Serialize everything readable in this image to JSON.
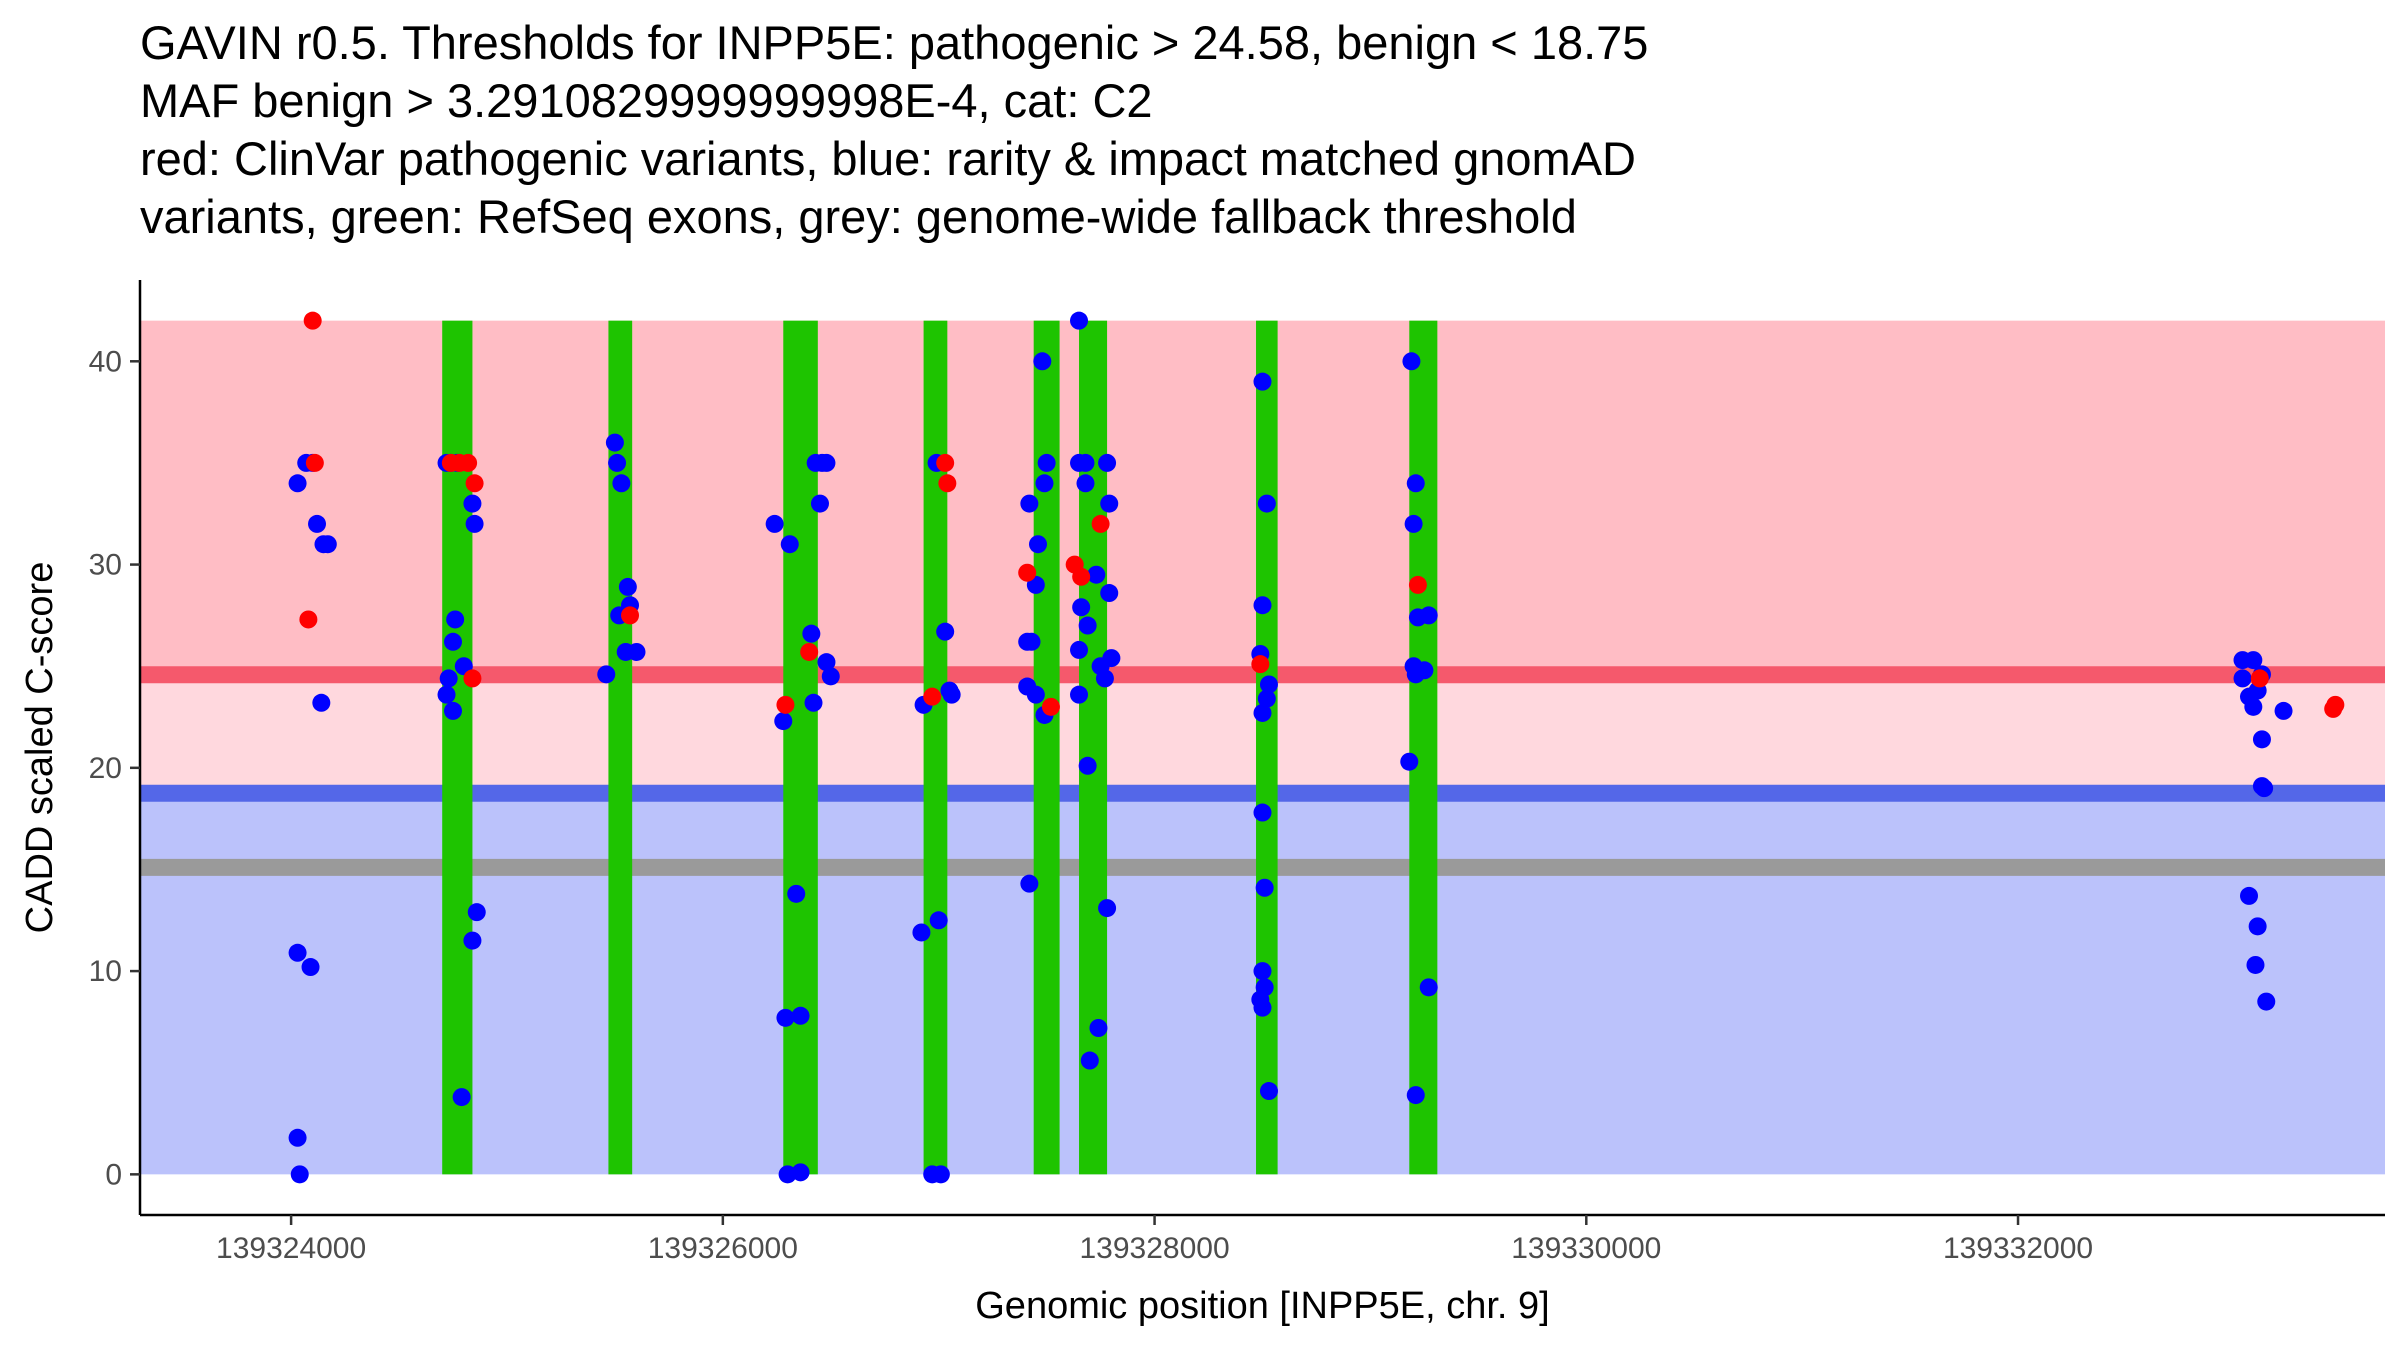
{
  "chart_data": {
    "type": "scatter",
    "title_lines": [
      "GAVIN r0.5. Thresholds for INPP5E: pathogenic > 24.58, benign < 18.75",
      "MAF benign > 3.2910829999999998E-4, cat: C2",
      "red: ClinVar pathogenic variants, blue: rarity & impact matched gnomAD",
      "variants, green: RefSeq exons, grey: genome-wide fallback threshold"
    ],
    "xlabel": "Genomic position [INPP5E, chr. 9]",
    "ylabel": "CADD scaled C-score",
    "xlim": [
      139323300,
      139333700
    ],
    "ylim": [
      -2,
      44
    ],
    "x_ticks": [
      139324000,
      139326000,
      139328000,
      139330000,
      139332000
    ],
    "x_tick_labels": [
      "139324000",
      "139326000",
      "139328000",
      "139330000",
      "139332000"
    ],
    "y_ticks": [
      0,
      10,
      20,
      30,
      40
    ],
    "y_tick_labels": [
      "0",
      "10",
      "20",
      "30",
      "40"
    ],
    "grid": false,
    "regions": {
      "x_range": [
        139323300,
        139333700
      ],
      "benign_band": {
        "from": 0,
        "to": 18.75,
        "color": "#bbc2fb"
      },
      "intermediate_band": {
        "from": 18.75,
        "to": 24.58,
        "color": "#ffd8de"
      },
      "pathogenic_band": {
        "from": 24.58,
        "to": 42,
        "color": "#ffbdc5"
      }
    },
    "threshold_lines": [
      {
        "name": "pathogenic",
        "value": 24.58,
        "color": "#f5596c"
      },
      {
        "name": "benign",
        "value": 18.75,
        "color": "#5467e8"
      },
      {
        "name": "fallback",
        "value": 15.1,
        "color": "#9a9a9a"
      }
    ],
    "exons": {
      "color": "#1ec400",
      "y_range": [
        0,
        42
      ],
      "ranges": [
        [
          139324700,
          139324840
        ],
        [
          139325470,
          139325580
        ],
        [
          139326280,
          139326440
        ],
        [
          139326930,
          139327040
        ],
        [
          139327440,
          139327560
        ],
        [
          139327650,
          139327780
        ],
        [
          139328470,
          139328570
        ],
        [
          139329180,
          139329310
        ]
      ]
    },
    "series": [
      {
        "name": "rarity & impact matched gnomAD variants",
        "color": "#0000ff",
        "points": [
          [
            139324030,
            34.0
          ],
          [
            139324070,
            35.0
          ],
          [
            139324100,
            35.0
          ],
          [
            139324120,
            32.0
          ],
          [
            139324150,
            31.0
          ],
          [
            139324170,
            31.0
          ],
          [
            139324140,
            23.2
          ],
          [
            139324030,
            10.9
          ],
          [
            139324090,
            10.2
          ],
          [
            139324030,
            1.8
          ],
          [
            139324040,
            0.0
          ],
          [
            139324720,
            35.0
          ],
          [
            139324740,
            35.0
          ],
          [
            139324770,
            35.0
          ],
          [
            139324760,
            27.3
          ],
          [
            139324750,
            26.2
          ],
          [
            139324730,
            24.4
          ],
          [
            139324720,
            23.6
          ],
          [
            139324750,
            22.8
          ],
          [
            139324800,
            25.0
          ],
          [
            139324840,
            33.0
          ],
          [
            139324850,
            32.0
          ],
          [
            139324860,
            12.9
          ],
          [
            139324840,
            11.5
          ],
          [
            139324790,
            3.8
          ],
          [
            139325500,
            36.0
          ],
          [
            139325510,
            35.0
          ],
          [
            139325530,
            34.0
          ],
          [
            139325560,
            28.9
          ],
          [
            139325570,
            28.0
          ],
          [
            139325520,
            27.5
          ],
          [
            139325460,
            24.6
          ],
          [
            139325550,
            25.7
          ],
          [
            139325600,
            25.7
          ],
          [
            139326240,
            32.0
          ],
          [
            139326310,
            31.0
          ],
          [
            139326280,
            22.3
          ],
          [
            139326430,
            35.0
          ],
          [
            139326460,
            35.0
          ],
          [
            139326480,
            35.0
          ],
          [
            139326450,
            33.0
          ],
          [
            139326410,
            26.6
          ],
          [
            139326480,
            25.2
          ],
          [
            139326500,
            24.5
          ],
          [
            139326420,
            23.2
          ],
          [
            139326340,
            13.8
          ],
          [
            139326290,
            7.7
          ],
          [
            139326360,
            7.8
          ],
          [
            139326300,
            0.0
          ],
          [
            139326360,
            0.1
          ],
          [
            139326990,
            35.0
          ],
          [
            139327030,
            26.7
          ],
          [
            139326930,
            23.1
          ],
          [
            139327050,
            23.8
          ],
          [
            139327060,
            23.6
          ],
          [
            139326920,
            11.9
          ],
          [
            139327000,
            12.5
          ],
          [
            139326970,
            0.0
          ],
          [
            139327010,
            0.0
          ],
          [
            139327420,
            33.0
          ],
          [
            139327460,
            31.0
          ],
          [
            139327450,
            29.0
          ],
          [
            139327410,
            26.2
          ],
          [
            139327430,
            26.2
          ],
          [
            139327410,
            24.0
          ],
          [
            139327450,
            23.6
          ],
          [
            139327490,
            22.6
          ],
          [
            139327500,
            35.0
          ],
          [
            139327490,
            34.0
          ],
          [
            139327480,
            40.0
          ],
          [
            139327420,
            14.3
          ],
          [
            139327650,
            42.0
          ],
          [
            139327650,
            35.0
          ],
          [
            139327680,
            35.0
          ],
          [
            139327780,
            35.0
          ],
          [
            139327680,
            34.0
          ],
          [
            139327790,
            33.0
          ],
          [
            139327730,
            29.5
          ],
          [
            139327790,
            28.6
          ],
          [
            139327660,
            27.9
          ],
          [
            139327690,
            27.0
          ],
          [
            139327650,
            25.8
          ],
          [
            139327800,
            25.4
          ],
          [
            139327750,
            25.0
          ],
          [
            139327770,
            24.4
          ],
          [
            139327650,
            23.6
          ],
          [
            139327690,
            20.1
          ],
          [
            139327780,
            13.1
          ],
          [
            139327740,
            7.2
          ],
          [
            139327700,
            5.6
          ]
        ]
      },
      {
        "name": "rarity & impact matched gnomAD variants (cont.)",
        "color": "#0000ff",
        "points": [
          [
            139328500,
            39.0
          ],
          [
            139328520,
            33.0
          ],
          [
            139328500,
            28.0
          ],
          [
            139328490,
            25.6
          ],
          [
            139328530,
            24.1
          ],
          [
            139328520,
            23.4
          ],
          [
            139328500,
            22.7
          ],
          [
            139328500,
            17.8
          ],
          [
            139328510,
            14.1
          ],
          [
            139328500,
            10.0
          ],
          [
            139328510,
            9.2
          ],
          [
            139328490,
            8.6
          ],
          [
            139328500,
            8.2
          ],
          [
            139328530,
            4.1
          ],
          [
            139329190,
            40.0
          ],
          [
            139329210,
            34.0
          ],
          [
            139329200,
            32.0
          ],
          [
            139329220,
            27.4
          ],
          [
            139329270,
            27.5
          ],
          [
            139329200,
            25.0
          ],
          [
            139329210,
            24.6
          ],
          [
            139329250,
            24.8
          ],
          [
            139329180,
            20.3
          ],
          [
            139329270,
            9.2
          ],
          [
            139329210,
            3.9
          ],
          [
            139333040,
            25.3
          ],
          [
            139333090,
            25.3
          ],
          [
            139333130,
            24.6
          ],
          [
            139333040,
            24.4
          ],
          [
            139333070,
            23.5
          ],
          [
            139333110,
            23.8
          ],
          [
            139333090,
            23.0
          ],
          [
            139333230,
            22.8
          ],
          [
            139333130,
            21.4
          ],
          [
            139333130,
            19.1
          ],
          [
            139333140,
            19.0
          ],
          [
            139333070,
            13.7
          ],
          [
            139333110,
            12.2
          ],
          [
            139333100,
            10.3
          ],
          [
            139333150,
            8.5
          ]
        ]
      },
      {
        "name": "ClinVar pathogenic variants",
        "color": "#ff0000",
        "points": [
          [
            139324100,
            42.0
          ],
          [
            139324110,
            35.0
          ],
          [
            139324080,
            27.3
          ],
          [
            139324740,
            35.0
          ],
          [
            139324780,
            35.0
          ],
          [
            139324820,
            35.0
          ],
          [
            139324850,
            34.0
          ],
          [
            139324840,
            24.4
          ],
          [
            139325570,
            27.5
          ],
          [
            139326290,
            23.1
          ],
          [
            139326400,
            25.7
          ],
          [
            139327030,
            35.0
          ],
          [
            139327040,
            34.0
          ],
          [
            139326970,
            23.5
          ],
          [
            139327410,
            29.6
          ],
          [
            139327520,
            23.0
          ],
          [
            139327630,
            30.0
          ],
          [
            139327660,
            29.4
          ],
          [
            139327750,
            32.0
          ],
          [
            139328490,
            25.1
          ],
          [
            139329220,
            29.0
          ],
          [
            139333120,
            24.4
          ],
          [
            139333460,
            22.9
          ],
          [
            139333470,
            23.1
          ]
        ]
      }
    ]
  }
}
